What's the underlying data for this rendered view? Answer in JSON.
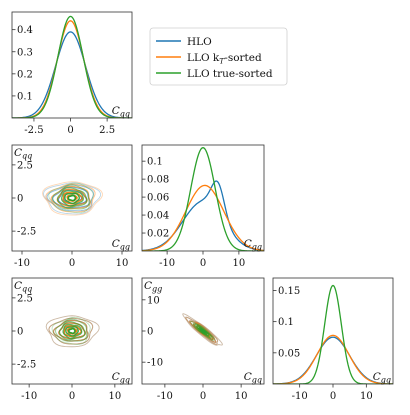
{
  "colors": {
    "hlo": "#1f77b4",
    "llo_kt": "#ff7f0e",
    "llo_true": "#2ca02c"
  },
  "legend": [
    {
      "key": "hlo",
      "label": "HLO"
    },
    {
      "key": "llo_kt",
      "label": "LLO k",
      "label_sub": "T",
      "label_tail": "-sorted"
    },
    {
      "key": "llo_true",
      "label": "LLO true-sorted"
    }
  ],
  "chart_data": [
    {
      "type": "line",
      "panel": "Cqq-marginal",
      "xlabel": "Cqq",
      "ylabel": "",
      "xlim": [
        -4,
        4.2
      ],
      "ylim": [
        0,
        0.48
      ],
      "xticks": [
        "-2.5",
        "0",
        "2.5"
      ],
      "xtick_values": [
        -2.5,
        0,
        2.5
      ],
      "yticks": [
        "0.1",
        "0.2",
        "0.3",
        "0.4"
      ],
      "ytick_values": [
        0.1,
        0.2,
        0.3,
        0.4
      ],
      "series": [
        {
          "name": "HLO",
          "key": "hlo",
          "kind": "gauss",
          "mu": 0,
          "sigma": 1.02,
          "peak": 0.39
        },
        {
          "name": "LLO kT-sorted",
          "key": "llo_kt",
          "kind": "gauss",
          "mu": 0,
          "sigma": 0.9,
          "peak": 0.44
        },
        {
          "name": "LLO true-sorted",
          "key": "llo_true",
          "kind": "gauss",
          "mu": 0,
          "sigma": 0.86,
          "peak": 0.46
        }
      ]
    },
    {
      "type": "contour",
      "panel": "Cqg-vs-Cqq",
      "xlabel": "Cqg",
      "ylabel": "Cqq",
      "xlim": [
        -12,
        12
      ],
      "ylim": [
        -4,
        4
      ],
      "xticks": [
        "-10",
        "0",
        "10"
      ],
      "xtick_values": [
        -10,
        0,
        10
      ],
      "yticks": [
        "-2.5",
        "0",
        "2.5"
      ],
      "ytick_values": [
        -2.5,
        0,
        2.5
      ],
      "series": [
        {
          "name": "HLO",
          "key": "hlo",
          "cx": 0,
          "cy": 0,
          "sx": 6.0,
          "sy": 1.3,
          "rho": 0
        },
        {
          "name": "LLO kT-sorted",
          "key": "llo_kt",
          "cx": 0,
          "cy": 0,
          "sx": 6.3,
          "sy": 1.4,
          "rho": 0
        },
        {
          "name": "LLO true-sorted",
          "key": "llo_true",
          "cx": 0,
          "cy": 0,
          "sx": 4.8,
          "sy": 1.2,
          "rho": 0
        }
      ]
    },
    {
      "type": "line",
      "panel": "Cgg-marginal",
      "xlabel": "Cgg",
      "ylabel": "",
      "xlim": [
        -17,
        17
      ],
      "ylim": [
        0,
        0.118
      ],
      "xticks": [
        "-10",
        "0",
        "10"
      ],
      "xtick_values": [
        -10,
        0,
        10
      ],
      "yticks": [
        "0.02",
        "0.04",
        "0.06",
        "0.08",
        "0.1"
      ],
      "ytick_values": [
        0.02,
        0.04,
        0.06,
        0.08,
        0.1
      ],
      "series": [
        {
          "name": "HLO",
          "key": "hlo",
          "kind": "bimodal",
          "mu": 0,
          "sigma": 5.6,
          "peak": 0.055,
          "mu2": 4.2,
          "sigma2": 1.8,
          "peak2": 0.035
        },
        {
          "name": "LLO kT-sorted",
          "key": "llo_kt",
          "kind": "gauss",
          "mu": 0.5,
          "sigma": 5.3,
          "peak": 0.073
        },
        {
          "name": "LLO true-sorted",
          "key": "llo_true",
          "kind": "gauss",
          "mu": 0,
          "sigma": 3.4,
          "peak": 0.115
        }
      ]
    },
    {
      "type": "contour",
      "panel": "Cgq-vs-Cqq",
      "xlabel": "Cgq",
      "ylabel": "Cqq",
      "xlim": [
        -14,
        14
      ],
      "ylim": [
        -4,
        4
      ],
      "xticks": [
        "-10",
        "0",
        "10"
      ],
      "xtick_values": [
        -10,
        0,
        10
      ],
      "yticks": [
        "-2.5",
        "0",
        "2.5"
      ],
      "ytick_values": [
        -2.5,
        0,
        2.5
      ],
      "series": [
        {
          "name": "HLO",
          "key": "hlo",
          "cx": 0,
          "cy": 0,
          "sx": 6.5,
          "sy": 1.3,
          "rho": 0
        },
        {
          "name": "LLO kT-sorted",
          "key": "llo_kt",
          "cx": 0,
          "cy": 0,
          "sx": 6.5,
          "sy": 1.3,
          "rho": 0
        },
        {
          "name": "LLO true-sorted",
          "key": "llo_true",
          "cx": 0,
          "cy": 0,
          "sx": 4.8,
          "sy": 1.1,
          "rho": 0
        }
      ]
    },
    {
      "type": "contour",
      "panel": "Cgq-vs-Cgg",
      "xlabel": "Cgq",
      "ylabel": "Cgg",
      "xlim": [
        -16,
        16
      ],
      "ylim": [
        -17,
        17
      ],
      "xticks": [
        "-10",
        "0",
        "10"
      ],
      "xtick_values": [
        -10,
        0,
        10
      ],
      "yticks": [
        "-10",
        "0",
        "10"
      ],
      "ytick_values": [
        -10,
        0,
        10
      ],
      "series": [
        {
          "name": "HLO",
          "key": "hlo",
          "cx": 0,
          "cy": 0,
          "sx": 5.5,
          "sy": 5.5,
          "rho": -0.93
        },
        {
          "name": "LLO kT-sorted",
          "key": "llo_kt",
          "cx": 0,
          "cy": 0,
          "sx": 5.5,
          "sy": 5.5,
          "rho": -0.93
        },
        {
          "name": "LLO true-sorted",
          "key": "llo_true",
          "cx": 0,
          "cy": 0,
          "sx": 3.5,
          "sy": 3.4,
          "rho": -0.93
        }
      ]
    },
    {
      "type": "line",
      "panel": "Cgq-marginal",
      "xlabel": "Cgq",
      "ylabel": "",
      "xlim": [
        -18,
        18
      ],
      "ylim": [
        0,
        0.17
      ],
      "xticks": [
        "-10",
        "0",
        "10"
      ],
      "xtick_values": [
        -10,
        0,
        10
      ],
      "yticks": [
        "0.05",
        "0.1",
        "0.15"
      ],
      "ytick_values": [
        0.05,
        0.1,
        0.15
      ],
      "series": [
        {
          "name": "HLO",
          "key": "hlo",
          "kind": "gauss",
          "mu": 0,
          "sigma": 5.0,
          "peak": 0.075
        },
        {
          "name": "LLO kT-sorted",
          "key": "llo_kt",
          "kind": "gauss",
          "mu": 0,
          "sigma": 4.8,
          "peak": 0.078
        },
        {
          "name": "LLO true-sorted",
          "key": "llo_true",
          "kind": "gauss",
          "mu": 0,
          "sigma": 2.5,
          "peak": 0.158
        }
      ]
    }
  ]
}
